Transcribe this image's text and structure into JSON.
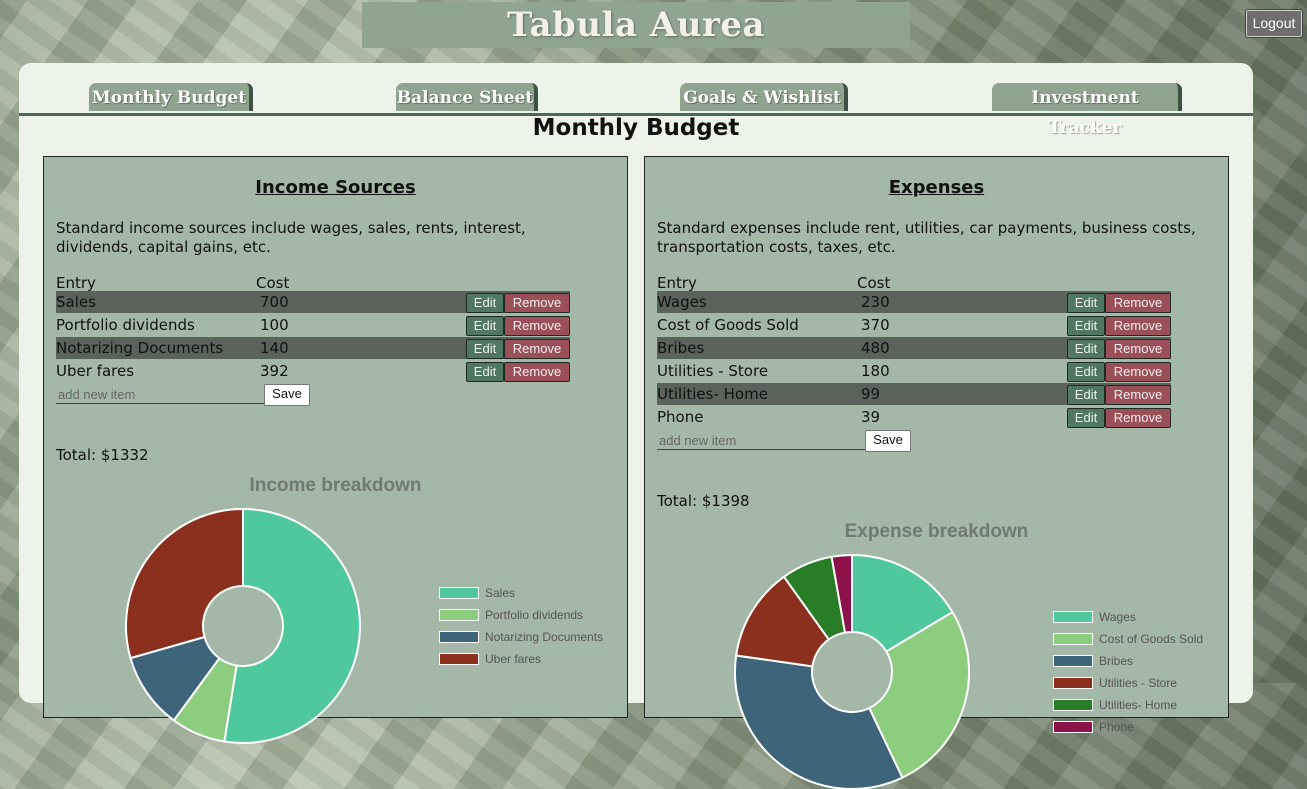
{
  "app": {
    "title": "Tabula Aurea",
    "logout_label": "Logout"
  },
  "tabs": [
    {
      "label": "Monthly Budget"
    },
    {
      "label": "Balance Sheet"
    },
    {
      "label": "Goals & Wishlist"
    },
    {
      "label": "Investment Tracker"
    }
  ],
  "page_title": "Monthly Budget",
  "income": {
    "title": "Income Sources",
    "description": "Standard income sources include wages, sales, rents, interest, dividends, capital gains, etc.",
    "col_entry": "Entry",
    "col_cost": "Cost",
    "rows": [
      {
        "name": "Sales",
        "cost": "700"
      },
      {
        "name": "Portfolio dividends",
        "cost": "100"
      },
      {
        "name": "Notarizing Documents",
        "cost": "140"
      },
      {
        "name": "Uber fares",
        "cost": "392"
      }
    ],
    "edit_label": "Edit",
    "remove_label": "Remove",
    "add_placeholder": "add new item",
    "save_label": "Save",
    "total": "Total: $1332",
    "chart_title": "Income breakdown"
  },
  "expenses": {
    "title": "Expenses",
    "description": "Standard expenses include rent, utilities, car payments, business costs, transportation costs, taxes, etc.",
    "col_entry": "Entry",
    "col_cost": "Cost",
    "rows": [
      {
        "name": "Wages",
        "cost": "230"
      },
      {
        "name": "Cost of Goods Sold",
        "cost": "370"
      },
      {
        "name": "Bribes",
        "cost": "480"
      },
      {
        "name": "Utilities - Store",
        "cost": "180"
      },
      {
        "name": "Utilities- Home",
        "cost": "99"
      },
      {
        "name": "Phone",
        "cost": "39"
      }
    ],
    "edit_label": "Edit",
    "remove_label": "Remove",
    "add_placeholder": "add new item",
    "save_label": "Save",
    "total": "Total: $1398",
    "chart_title": "Expense breakdown"
  },
  "chart_data": [
    {
      "type": "pie",
      "title": "Income breakdown",
      "categories": [
        "Sales",
        "Portfolio dividends",
        "Notarizing Documents",
        "Uber fares"
      ],
      "values": [
        700,
        100,
        140,
        392
      ],
      "colors": [
        "#4fc89e",
        "#8dcd7e",
        "#3d6479",
        "#8b2f1e"
      ],
      "legend": "right"
    },
    {
      "type": "pie",
      "title": "Expense breakdown",
      "categories": [
        "Wages",
        "Cost of Goods Sold",
        "Bribes",
        "Utilities - Store",
        "Utilities- Home",
        "Phone"
      ],
      "values": [
        230,
        370,
        480,
        180,
        99,
        39
      ],
      "visible_slice_colors": [
        "#4fc89e",
        "#8dcd7e",
        "#3d6479",
        "#8b2f1e",
        "#2a7d27",
        "#8c1249"
      ],
      "legend": "right"
    }
  ]
}
